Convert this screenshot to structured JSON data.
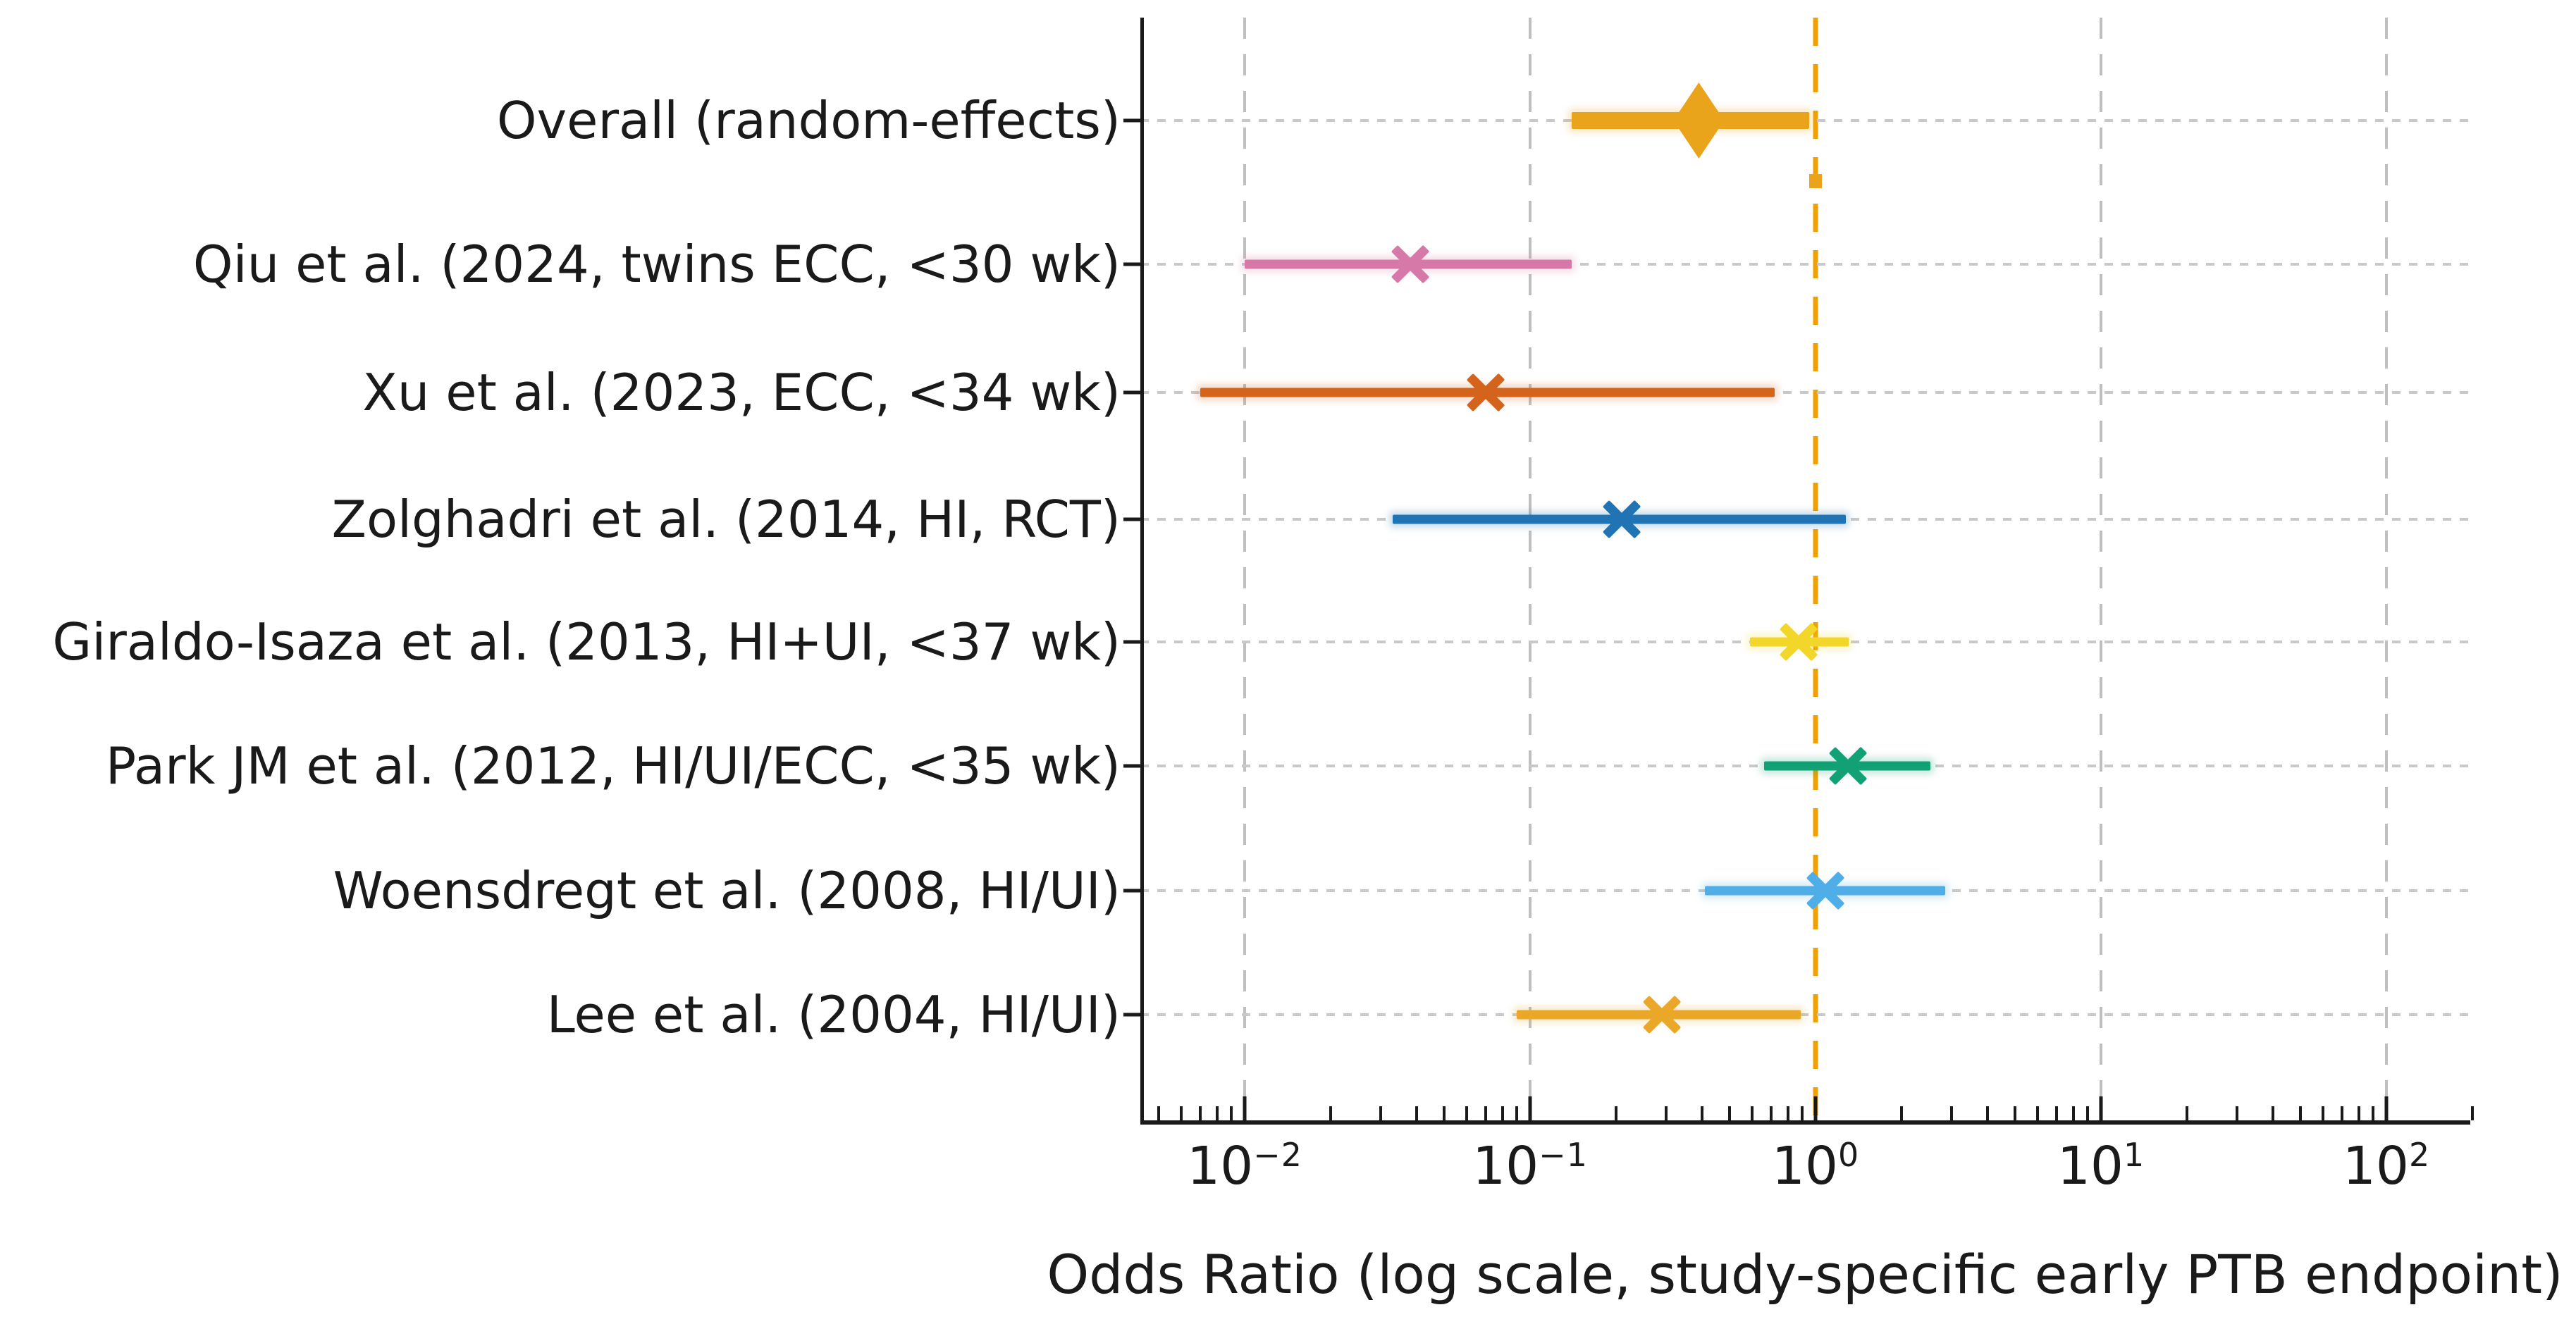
{
  "chart_data": {
    "type": "scatter",
    "subtype": "forest-plot",
    "title": "",
    "xlabel": "Odds Ratio (log scale, study-specific early PTB endpoint)",
    "x_scale": "log",
    "x_tick_exponents": [
      -2,
      -1,
      0,
      1,
      2
    ],
    "x_tick_labels": [
      "10⁻²",
      "10⁻¹",
      "10⁰",
      "10¹",
      "10²"
    ],
    "xlim": [
      0.0043,
      200
    ],
    "grid": true,
    "reference_line": {
      "value": 1.0,
      "color": "#F0A202",
      "style": "dashed"
    },
    "annotation_marker": {
      "value": 1.0,
      "shape": "square",
      "color": "#E9A41C"
    },
    "rows": [
      {
        "label": "Overall (random-effects)",
        "or": 0.39,
        "ci_low": 0.14,
        "ci_high": 0.95,
        "color": "#E9A41C",
        "marker": "diamond",
        "role": "summary"
      },
      {
        "label": "Qiu et al. (2024, twins ECC, <30 wk)",
        "or": 0.038,
        "ci_low": 0.01,
        "ci_high": 0.14,
        "color": "#D678A8",
        "marker": "x",
        "role": "study"
      },
      {
        "label": "Xu et al. (2023, ECC, <34 wk)",
        "or": 0.07,
        "ci_low": 0.007,
        "ci_high": 0.72,
        "color": "#D4631B",
        "marker": "x",
        "role": "study"
      },
      {
        "label": "Zolghadri et al. (2014, HI, RCT)",
        "or": 0.21,
        "ci_low": 0.033,
        "ci_high": 1.28,
        "color": "#2074B4",
        "marker": "x",
        "role": "study"
      },
      {
        "label": "Giraldo-Isaza et al. (2013, HI+UI, <37 wk)",
        "or": 0.87,
        "ci_low": 0.59,
        "ci_high": 1.31,
        "color": "#F2D72A",
        "marker": "x",
        "role": "study"
      },
      {
        "label": "Park JM et al. (2012, HI/UI/ECC, <35 wk)",
        "or": 1.3,
        "ci_low": 0.66,
        "ci_high": 2.53,
        "color": "#12A075",
        "marker": "x",
        "role": "study"
      },
      {
        "label": "Woensdregt et al. (2008, HI/UI)",
        "or": 1.08,
        "ci_low": 0.41,
        "ci_high": 2.85,
        "color": "#4FADE8",
        "marker": "x",
        "role": "study"
      },
      {
        "label": "Lee et al. (2004, HI/UI)",
        "or": 0.29,
        "ci_low": 0.09,
        "ci_high": 0.89,
        "color": "#EAA728",
        "marker": "x",
        "role": "study"
      }
    ],
    "legend": null
  }
}
